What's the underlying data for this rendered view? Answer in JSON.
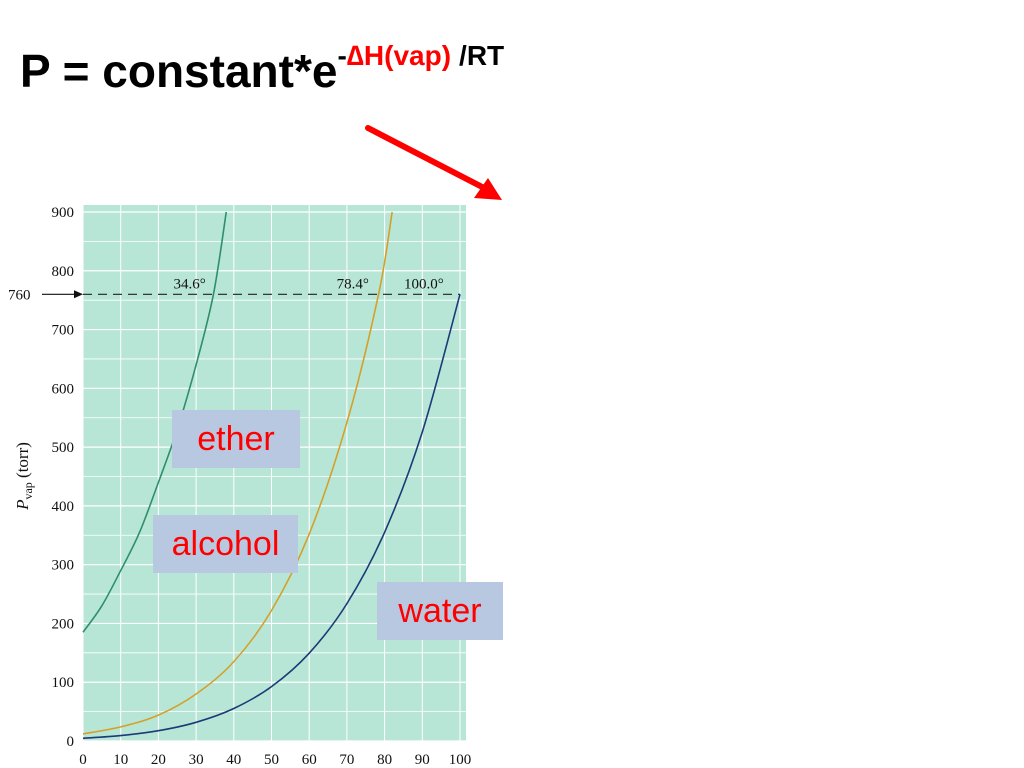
{
  "title": {
    "main": "P = constant*e",
    "sup_minus": "-",
    "sup_delta": "∆",
    "sup_red": "H(vap)",
    "sup_black": "/RT"
  },
  "colors": {
    "title_red": "#ff0000",
    "arrow": "#ff0000",
    "chart_bg": "#b8e6d6",
    "grid": "#ffffff",
    "ether": "#2e8f6a",
    "alcohol": "#d4a02a",
    "water": "#1c3a78",
    "label_box": "#b8c8e0",
    "label_text": "#ff0000"
  },
  "chart_data": {
    "type": "line",
    "ylabel_main": "P",
    "ylabel_sub": "vap",
    "ylabel_unit": " (torr)",
    "xlim": [
      0,
      100
    ],
    "ylim": [
      0,
      900
    ],
    "x_ticks": [
      0,
      10,
      20,
      30,
      40,
      50,
      60,
      70,
      80,
      90,
      100
    ],
    "y_ticks": [
      0,
      100,
      200,
      300,
      400,
      500,
      600,
      700,
      800,
      900
    ],
    "grid": true,
    "reference": {
      "value": 760,
      "label": "760",
      "boiling_points": [
        {
          "x": 34.6,
          "label": "34.6°"
        },
        {
          "x": 78.4,
          "label": "78.4°"
        },
        {
          "x": 100.0,
          "label": "100.0°"
        }
      ]
    },
    "series": [
      {
        "name": "ether",
        "color": "#2e8f6a",
        "x": [
          0,
          5,
          10,
          15,
          20,
          25,
          30,
          34.6,
          38
        ],
        "values": [
          185,
          230,
          290,
          355,
          440,
          530,
          640,
          760,
          900
        ]
      },
      {
        "name": "alcohol",
        "color": "#d4a02a",
        "x": [
          0,
          10,
          20,
          30,
          40,
          50,
          60,
          70,
          78.4,
          82
        ],
        "values": [
          12,
          24,
          44,
          80,
          135,
          222,
          352,
          542,
          760,
          900
        ]
      },
      {
        "name": "water",
        "color": "#1c3a78",
        "x": [
          0,
          10,
          20,
          30,
          40,
          50,
          60,
          70,
          80,
          90,
          100
        ],
        "values": [
          4.6,
          9.2,
          17.5,
          31.8,
          55.3,
          92.5,
          149.4,
          233.7,
          355.1,
          525.8,
          760
        ]
      }
    ],
    "labels": [
      "ether",
      "alcohol",
      "water"
    ]
  }
}
